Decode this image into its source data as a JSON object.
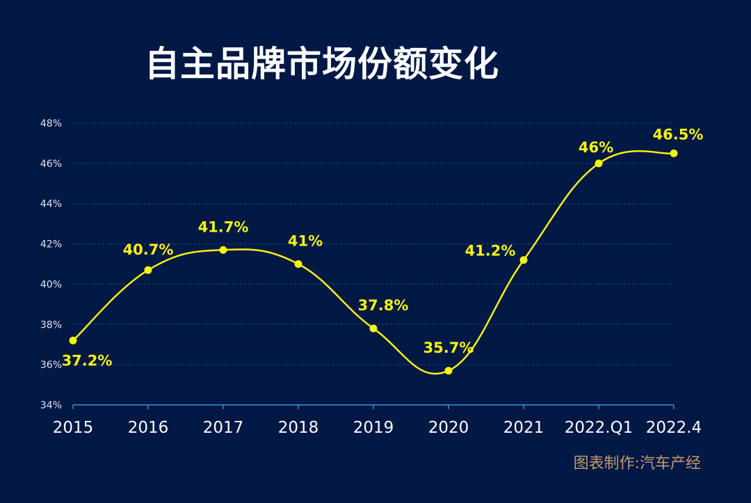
{
  "title": "自主品牌市场份额变化",
  "credit": "图表制作:汽车产经",
  "colors": {
    "background": "#021845",
    "line": "#f5f50e",
    "axis": "#3d8fd6",
    "grid": "#1f4a80",
    "title": "#ffffff",
    "credit": "#c49a6c"
  },
  "chart_data": {
    "type": "line",
    "title": "自主品牌市场份额变化",
    "categories": [
      "2015",
      "2016",
      "2017",
      "2018",
      "2019",
      "2020",
      "2021",
      "2022.Q1",
      "2022.4"
    ],
    "series": [
      {
        "name": "自主品牌市场份额",
        "values": [
          37.2,
          40.7,
          41.7,
          41,
          37.8,
          35.7,
          41.2,
          46,
          46.5
        ],
        "labels": [
          "37.2%",
          "40.7%",
          "41.7%",
          "41%",
          "37.8%",
          "35.7%",
          "41.2%",
          "46%",
          "46.5%"
        ]
      }
    ],
    "ylim": [
      34,
      48
    ],
    "yticks": [
      34,
      36,
      38,
      40,
      42,
      44,
      46,
      48
    ],
    "ytick_labels": [
      "34%",
      "36%",
      "38%",
      "40%",
      "42%",
      "44%",
      "46%",
      "48%"
    ],
    "xlabel": "",
    "ylabel": "",
    "grid": true,
    "smooth": true
  }
}
